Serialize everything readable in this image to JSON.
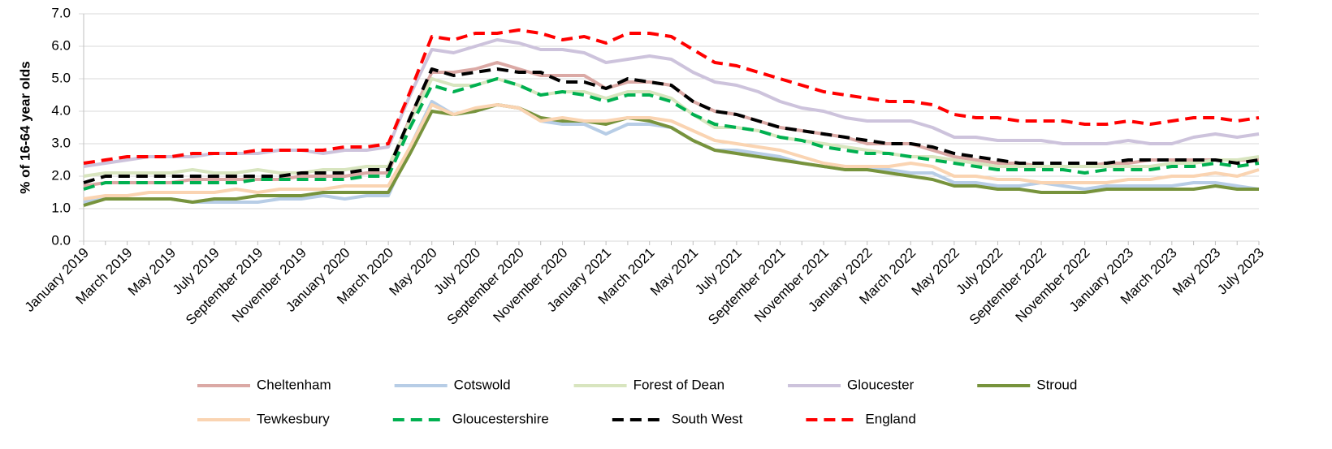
{
  "chart_data": {
    "type": "line",
    "y_label": "% of 16-64 year olds",
    "categories": [
      "January 2019",
      null,
      "March 2019",
      null,
      "May 2019",
      null,
      "July 2019",
      null,
      "September 2019",
      null,
      "November 2019",
      null,
      "January 2020",
      null,
      "March 2020",
      null,
      "May 2020",
      null,
      "July 2020",
      null,
      "September 2020",
      null,
      "November 2020",
      null,
      "January 2021",
      null,
      "March 2021",
      null,
      "May 2021",
      null,
      "July 2021",
      null,
      "September 2021",
      null,
      "November 2021",
      null,
      "January 2022",
      null,
      "March 2022",
      null,
      "May 2022",
      null,
      "July 2022",
      null,
      "September 2022",
      null,
      "November 2022",
      null,
      "January 2023",
      null,
      "March 2023",
      null,
      "May 2023",
      null,
      "July 2023"
    ],
    "ylim": [
      0,
      7
    ],
    "yticks": [
      {
        "value": 0,
        "label": "0.0"
      },
      {
        "value": 1,
        "label": "1.0"
      },
      {
        "value": 2,
        "label": "2.0"
      },
      {
        "value": 3,
        "label": "3.0"
      },
      {
        "value": 4,
        "label": "4.0"
      },
      {
        "value": 5,
        "label": "5.0"
      },
      {
        "value": 6,
        "label": "6.0"
      },
      {
        "value": 7,
        "label": "7.0"
      }
    ],
    "grid": true,
    "legend": "bottom",
    "series": [
      {
        "name": "Cheltenham",
        "color": "#dba9a5",
        "style": "solid",
        "values": [
          1.7,
          1.8,
          1.8,
          1.8,
          1.8,
          1.9,
          1.9,
          1.9,
          1.9,
          1.9,
          2.0,
          2.0,
          2.0,
          2.1,
          2.1,
          3.8,
          5.2,
          5.2,
          5.3,
          5.5,
          5.3,
          5.1,
          5.1,
          5.1,
          4.7,
          4.9,
          4.9,
          4.8,
          4.3,
          4.0,
          3.9,
          3.7,
          3.5,
          3.4,
          3.3,
          3.2,
          3.0,
          3.0,
          3.0,
          2.8,
          2.6,
          2.5,
          2.4,
          2.4,
          2.3,
          2.3,
          2.3,
          2.4,
          2.4,
          2.5,
          2.5,
          2.5,
          2.5,
          2.5,
          2.5
        ]
      },
      {
        "name": "Cotswold",
        "color": "#b7cde6",
        "style": "solid",
        "values": [
          1.2,
          1.3,
          1.3,
          1.3,
          1.3,
          1.2,
          1.2,
          1.2,
          1.2,
          1.3,
          1.3,
          1.4,
          1.3,
          1.4,
          1.4,
          2.9,
          4.3,
          3.9,
          4.0,
          4.2,
          4.1,
          3.7,
          3.6,
          3.6,
          3.3,
          3.6,
          3.6,
          3.5,
          3.1,
          2.8,
          2.8,
          2.7,
          2.6,
          2.4,
          2.3,
          2.2,
          2.2,
          2.2,
          2.1,
          2.1,
          1.8,
          1.8,
          1.7,
          1.7,
          1.8,
          1.7,
          1.6,
          1.7,
          1.7,
          1.7,
          1.7,
          1.8,
          1.8,
          1.7,
          1.6
        ]
      },
      {
        "name": "Forest of Dean",
        "color": "#d8e5bf",
        "style": "solid",
        "values": [
          2.0,
          2.1,
          2.1,
          2.1,
          2.1,
          2.2,
          2.1,
          2.1,
          2.2,
          2.1,
          2.1,
          2.2,
          2.2,
          2.3,
          2.3,
          3.7,
          5.0,
          4.8,
          4.8,
          5.0,
          4.8,
          4.5,
          4.6,
          4.6,
          4.4,
          4.6,
          4.6,
          4.4,
          3.9,
          3.5,
          3.5,
          3.4,
          3.2,
          3.1,
          3.0,
          2.9,
          2.8,
          2.7,
          2.6,
          2.6,
          2.5,
          2.4,
          2.3,
          2.3,
          2.3,
          2.3,
          2.3,
          2.3,
          2.3,
          2.3,
          2.4,
          2.4,
          2.5,
          2.5,
          2.6
        ]
      },
      {
        "name": "Gloucester",
        "color": "#cdc3dc",
        "style": "solid",
        "values": [
          2.3,
          2.4,
          2.5,
          2.6,
          2.6,
          2.6,
          2.7,
          2.7,
          2.7,
          2.8,
          2.8,
          2.7,
          2.8,
          2.8,
          2.9,
          4.5,
          5.9,
          5.8,
          6.0,
          6.2,
          6.1,
          5.9,
          5.9,
          5.8,
          5.5,
          5.6,
          5.7,
          5.6,
          5.2,
          4.9,
          4.8,
          4.6,
          4.3,
          4.1,
          4.0,
          3.8,
          3.7,
          3.7,
          3.7,
          3.5,
          3.2,
          3.2,
          3.1,
          3.1,
          3.1,
          3.0,
          3.0,
          3.0,
          3.1,
          3.0,
          3.0,
          3.2,
          3.3,
          3.2,
          3.3
        ]
      },
      {
        "name": "Stroud",
        "color": "#77933c",
        "style": "solid",
        "values": [
          1.1,
          1.3,
          1.3,
          1.3,
          1.3,
          1.2,
          1.3,
          1.3,
          1.4,
          1.4,
          1.4,
          1.5,
          1.5,
          1.5,
          1.5,
          2.7,
          4.0,
          3.9,
          4.0,
          4.2,
          4.1,
          3.8,
          3.7,
          3.7,
          3.6,
          3.8,
          3.7,
          3.5,
          3.1,
          2.8,
          2.7,
          2.6,
          2.5,
          2.4,
          2.3,
          2.2,
          2.2,
          2.1,
          2.0,
          1.9,
          1.7,
          1.7,
          1.6,
          1.6,
          1.5,
          1.5,
          1.5,
          1.6,
          1.6,
          1.6,
          1.6,
          1.6,
          1.7,
          1.6,
          1.6
        ]
      },
      {
        "name": "Tewkesbury",
        "color": "#fad4b2",
        "style": "solid",
        "values": [
          1.3,
          1.4,
          1.4,
          1.5,
          1.5,
          1.5,
          1.5,
          1.6,
          1.5,
          1.6,
          1.6,
          1.6,
          1.7,
          1.7,
          1.7,
          2.9,
          4.2,
          3.9,
          4.1,
          4.2,
          4.1,
          3.7,
          3.8,
          3.7,
          3.7,
          3.8,
          3.8,
          3.7,
          3.4,
          3.1,
          3.0,
          2.9,
          2.8,
          2.6,
          2.4,
          2.3,
          2.3,
          2.3,
          2.4,
          2.3,
          2.0,
          2.0,
          1.9,
          1.9,
          1.8,
          1.8,
          1.8,
          1.8,
          1.9,
          1.9,
          2.0,
          2.0,
          2.1,
          2.0,
          2.2
        ]
      },
      {
        "name": "Gloucestershire",
        "color": "#00b050",
        "style": "dashed",
        "values": [
          1.6,
          1.8,
          1.8,
          1.8,
          1.8,
          1.8,
          1.8,
          1.8,
          1.9,
          1.9,
          1.9,
          1.9,
          1.9,
          2.0,
          2.0,
          3.5,
          4.8,
          4.6,
          4.8,
          5.0,
          4.8,
          4.5,
          4.6,
          4.5,
          4.3,
          4.5,
          4.5,
          4.3,
          3.9,
          3.6,
          3.5,
          3.4,
          3.2,
          3.1,
          2.9,
          2.8,
          2.7,
          2.7,
          2.6,
          2.5,
          2.4,
          2.3,
          2.2,
          2.2,
          2.2,
          2.2,
          2.1,
          2.2,
          2.2,
          2.2,
          2.3,
          2.3,
          2.4,
          2.3,
          2.4
        ]
      },
      {
        "name": "South West",
        "color": "#000000",
        "style": "dashed",
        "values": [
          1.8,
          2.0,
          2.0,
          2.0,
          2.0,
          2.0,
          2.0,
          2.0,
          2.0,
          2.0,
          2.1,
          2.1,
          2.1,
          2.2,
          2.2,
          3.8,
          5.3,
          5.1,
          5.2,
          5.3,
          5.2,
          5.2,
          4.9,
          4.9,
          4.7,
          5.0,
          4.9,
          4.8,
          4.3,
          4.0,
          3.9,
          3.7,
          3.5,
          3.4,
          3.3,
          3.2,
          3.1,
          3.0,
          3.0,
          2.9,
          2.7,
          2.6,
          2.5,
          2.4,
          2.4,
          2.4,
          2.4,
          2.4,
          2.5,
          2.5,
          2.5,
          2.5,
          2.5,
          2.4,
          2.5
        ]
      },
      {
        "name": "England",
        "color": "#ff0000",
        "style": "dashed",
        "values": [
          2.4,
          2.5,
          2.6,
          2.6,
          2.6,
          2.7,
          2.7,
          2.7,
          2.8,
          2.8,
          2.8,
          2.8,
          2.9,
          2.9,
          3.0,
          4.6,
          6.3,
          6.2,
          6.4,
          6.4,
          6.5,
          6.4,
          6.2,
          6.3,
          6.1,
          6.4,
          6.4,
          6.3,
          5.9,
          5.5,
          5.4,
          5.2,
          5.0,
          4.8,
          4.6,
          4.5,
          4.4,
          4.3,
          4.3,
          4.2,
          3.9,
          3.8,
          3.8,
          3.7,
          3.7,
          3.7,
          3.6,
          3.6,
          3.7,
          3.6,
          3.7,
          3.8,
          3.8,
          3.7,
          3.8
        ]
      }
    ]
  }
}
